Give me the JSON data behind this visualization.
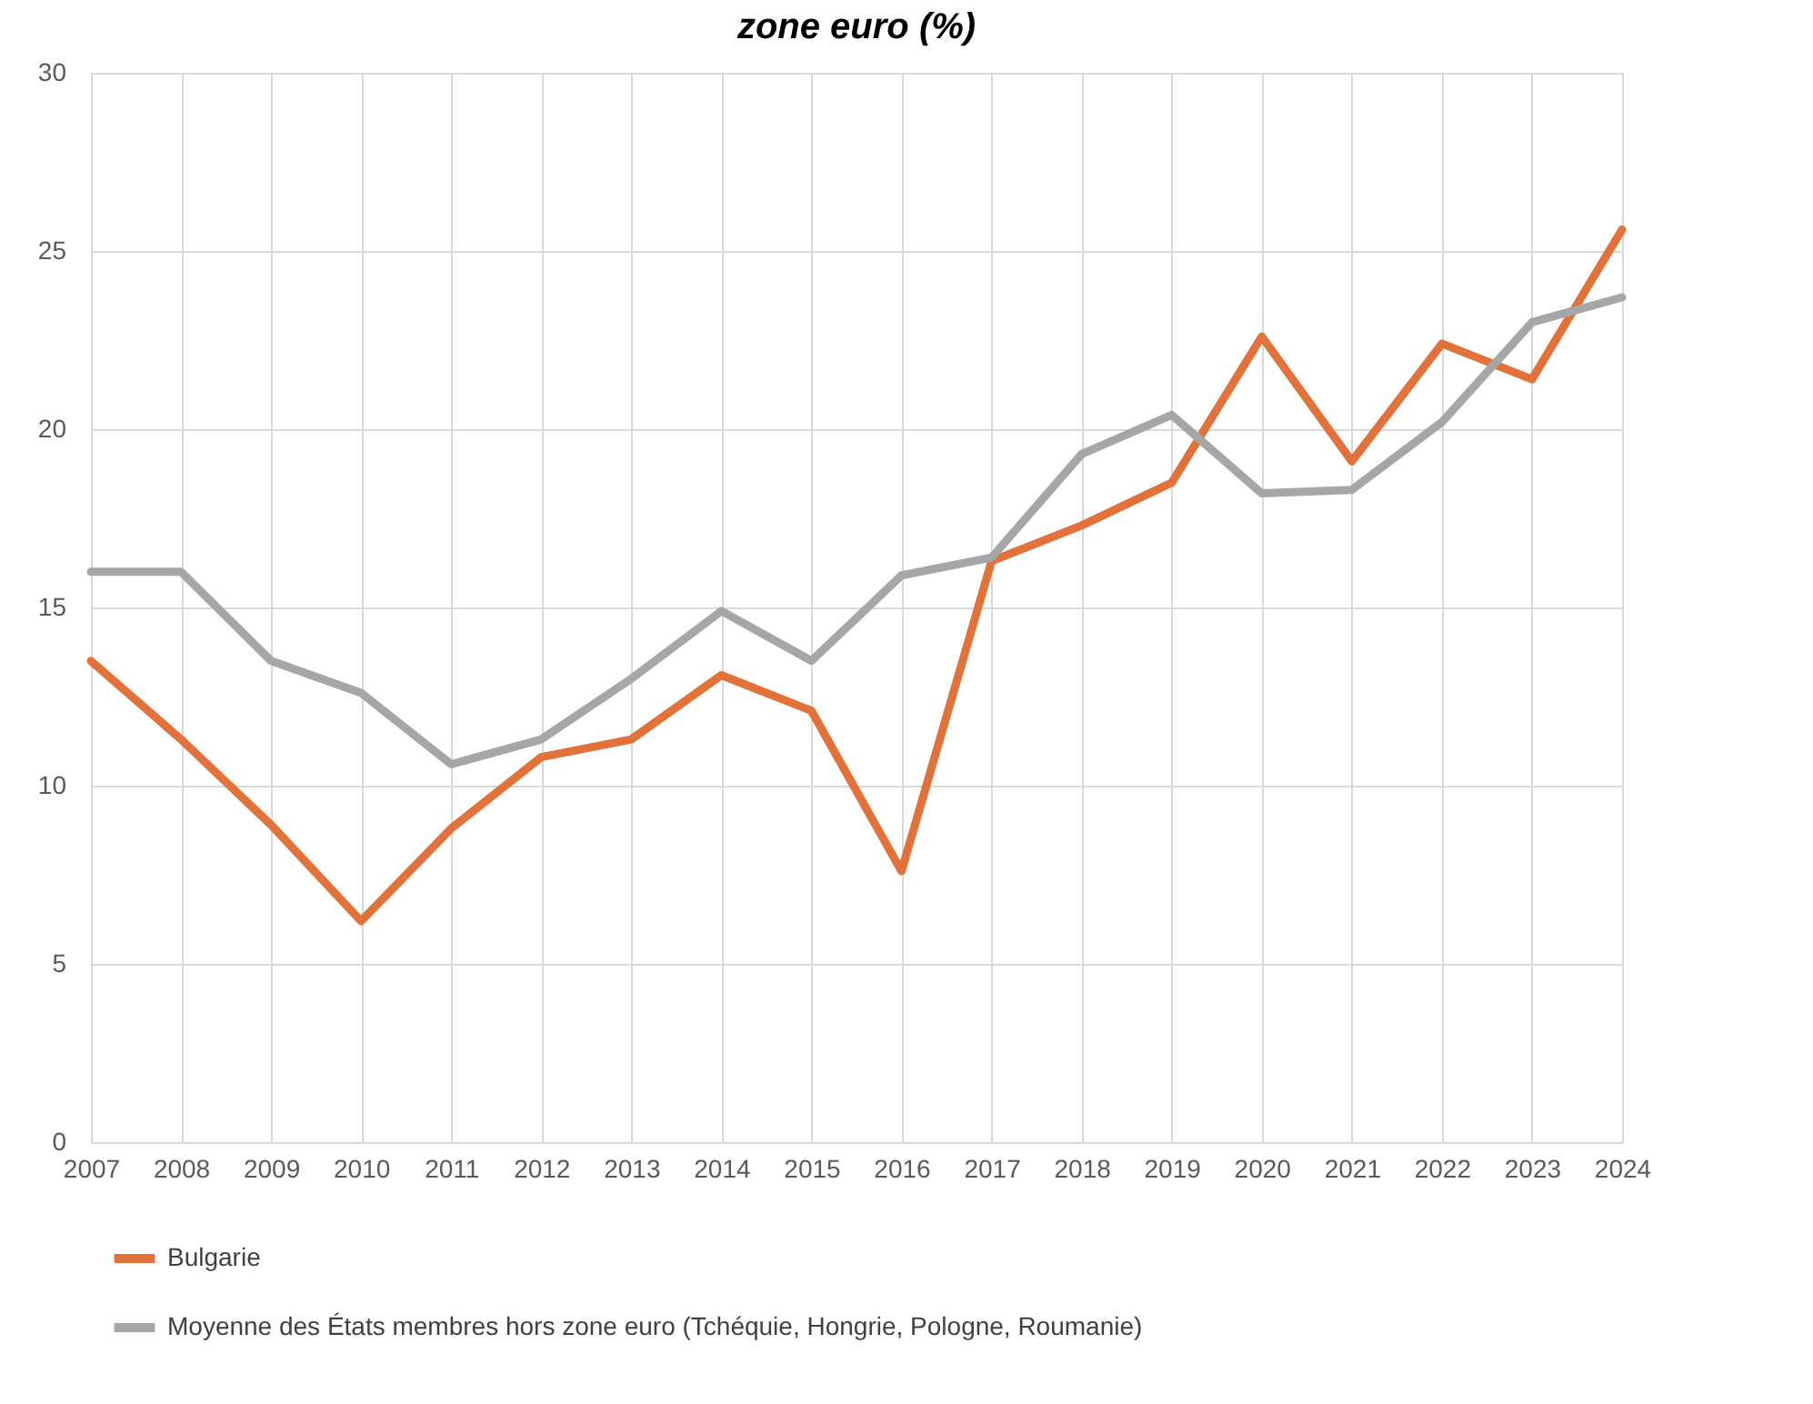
{
  "chart_data": {
    "type": "line",
    "title": "zone euro (%)",
    "categories": [
      "2007",
      "2008",
      "2009",
      "2010",
      "2011",
      "2012",
      "2013",
      "2014",
      "2015",
      "2016",
      "2017",
      "2018",
      "2019",
      "2020",
      "2021",
      "2022",
      "2023",
      "2024"
    ],
    "series": [
      {
        "name": "Bulgarie",
        "color": "#e2713a",
        "values": [
          13.5,
          11.3,
          8.9,
          6.2,
          8.8,
          10.8,
          11.3,
          13.1,
          12.1,
          7.6,
          16.3,
          17.3,
          18.5,
          22.6,
          19.1,
          22.4,
          21.4,
          25.6
        ]
      },
      {
        "name": "Moyenne des États membres hors zone euro (Tchéquie, Hongrie, Pologne, Roumanie)",
        "color": "#a6a6a6",
        "values": [
          16.0,
          16.0,
          13.5,
          12.6,
          10.6,
          11.3,
          13.0,
          14.9,
          13.5,
          15.9,
          16.4,
          19.3,
          20.4,
          18.2,
          18.3,
          20.2,
          23.0,
          23.7
        ]
      }
    ],
    "ylim": [
      0,
      30
    ],
    "yticks": [
      0,
      5,
      10,
      15,
      20,
      25,
      30
    ],
    "grid": true,
    "legend": "bottom",
    "marker": "none",
    "line_style": "solid"
  }
}
